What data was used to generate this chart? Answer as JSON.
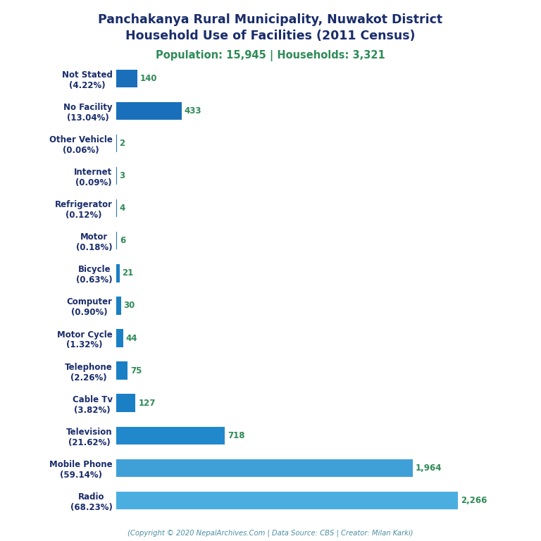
{
  "title_line1": "Panchakanya Rural Municipality, Nuwakot District",
  "title_line2": "Household Use of Facilities (2011 Census)",
  "subtitle": "Population: 15,945 | Households: 3,321",
  "footer": "(Copyright © 2020 NepalArchives.Com | Data Source: CBS | Creator: Milan Karki)",
  "categories_top_to_bottom": [
    "Not Stated\n(4.22%)",
    "No Facility\n(13.04%)",
    "Other Vehicle\n(0.06%)",
    "Internet\n(0.09%)",
    "Refrigerator\n(0.12%)",
    "Motor\n(0.18%)",
    "Bicycle\n(0.63%)",
    "Computer\n(0.90%)",
    "Motor Cycle\n(1.32%)",
    "Telephone\n(2.26%)",
    "Cable Tv\n(3.82%)",
    "Television\n(21.62%)",
    "Mobile Phone\n(59.14%)",
    "Radio\n(68.23%)"
  ],
  "values_top_to_bottom": [
    140,
    433,
    2,
    3,
    4,
    6,
    21,
    30,
    44,
    75,
    127,
    718,
    1964,
    2266
  ],
  "bar_colors_top_to_bottom": [
    "#1a6fba",
    "#1a6fba",
    "#1a6fba",
    "#1a6fba",
    "#1a6fba",
    "#1a6fba",
    "#1a7fc4",
    "#1a7fc4",
    "#1a7fc4",
    "#1a7fc4",
    "#1a7fc4",
    "#2188cc",
    "#3fa0d8",
    "#4aaee0"
  ],
  "title_color": "#1a2d6b",
  "subtitle_color": "#2e8b57",
  "footer_color": "#4a8fa4",
  "label_color": "#1a2d6b",
  "value_color": "#2e8b57",
  "background_color": "#ffffff",
  "figsize": [
    7.68,
    7.68
  ],
  "dpi": 100
}
